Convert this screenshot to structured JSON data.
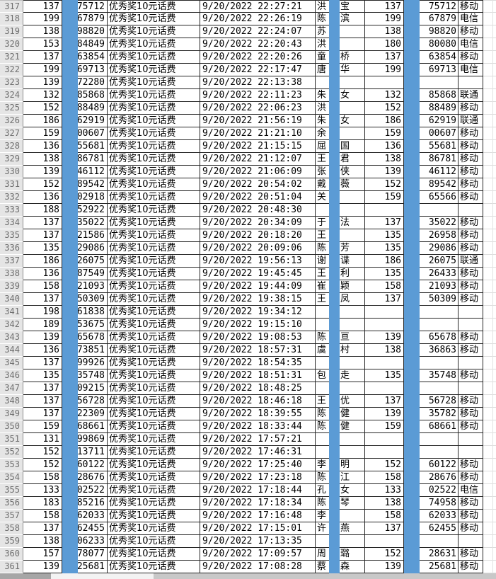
{
  "colors": {
    "mask_blue": "#5b9bd5"
  },
  "rows": [
    {
      "num": "317",
      "p1": "137",
      "s1": "75712",
      "prize": "优秀奖10元话费",
      "datetime": "9/20/2022 22:27:21",
      "n1": "洪",
      "n2": "宝",
      "p2": "137",
      "s2": "75712",
      "carrier": "移动"
    },
    {
      "num": "318",
      "p1": "199",
      "s1": "67879",
      "prize": "优秀奖10元话费",
      "datetime": "9/20/2022 22:26:19",
      "n1": "陈",
      "n2": "滨",
      "p2": "199",
      "s2": "67879",
      "carrier": "电信"
    },
    {
      "num": "319",
      "p1": "138",
      "s1": "98820",
      "prize": "优秀奖10元话费",
      "datetime": "9/20/2022 22:24:07",
      "n1": "苏",
      "n2": "",
      "p2": "138",
      "s2": "98820",
      "carrier": "移动"
    },
    {
      "num": "320",
      "p1": "153",
      "s1": "84849",
      "prize": "优秀奖10元话费",
      "datetime": "9/20/2022 22:20:43",
      "n1": "洪",
      "n2": "",
      "p2": "180",
      "s2": "80080",
      "carrier": "电信"
    },
    {
      "num": "321",
      "p1": "137",
      "s1": "63854",
      "prize": "优秀奖10元话费",
      "datetime": "9/20/2022 22:20:26",
      "n1": "童",
      "n2": "桥",
      "p2": "137",
      "s2": "63854",
      "carrier": "移动"
    },
    {
      "num": "322",
      "p1": "199",
      "s1": "69713",
      "prize": "优秀奖10元话费",
      "datetime": "9/20/2022 22:17:47",
      "n1": "唐",
      "n2": "华",
      "p2": "199",
      "s2": "69713",
      "carrier": "电信"
    },
    {
      "num": "323",
      "p1": "139",
      "s1": "72280",
      "prize": "优秀奖10元话费",
      "datetime": "9/20/2022 22:13:38",
      "n1": "",
      "n2": "",
      "p2": "",
      "s2": "",
      "carrier": ""
    },
    {
      "num": "324",
      "p1": "132",
      "s1": "85868",
      "prize": "优秀奖10元话费",
      "datetime": "9/20/2022 22:11:23",
      "n1": "朱",
      "n2": "女",
      "p2": "132",
      "s2": "85868",
      "carrier": "联通"
    },
    {
      "num": "325",
      "p1": "152",
      "s1": "88489",
      "prize": "优秀奖10元话费",
      "datetime": "9/20/2022 22:06:23",
      "n1": "洪",
      "n2": "",
      "p2": "152",
      "s2": "88489",
      "carrier": "移动"
    },
    {
      "num": "326",
      "p1": "186",
      "s1": "62919",
      "prize": "优秀奖10元话费",
      "datetime": "9/20/2022 21:56:19",
      "n1": "朱",
      "n2": "女",
      "p2": "186",
      "s2": "62919",
      "carrier": "联通"
    },
    {
      "num": "327",
      "p1": "159",
      "s1": "00607",
      "prize": "优秀奖10元话费",
      "datetime": "9/20/2022 21:21:10",
      "n1": "余",
      "n2": "",
      "p2": "159",
      "s2": "00607",
      "carrier": "移动"
    },
    {
      "num": "328",
      "p1": "136",
      "s1": "55681",
      "prize": "优秀奖10元话费",
      "datetime": "9/20/2022 21:15:15",
      "n1": "屈",
      "n2": "国",
      "p2": "136",
      "s2": "55681",
      "carrier": "移动"
    },
    {
      "num": "329",
      "p1": "138",
      "s1": "86781",
      "prize": "优秀奖10元话费",
      "datetime": "9/20/2022 21:12:07",
      "n1": "王",
      "n2": "君",
      "p2": "138",
      "s2": "86781",
      "carrier": "移动"
    },
    {
      "num": "330",
      "p1": "139",
      "s1": "46112",
      "prize": "优秀奖10元话费",
      "datetime": "9/20/2022 21:06:09",
      "n1": "张",
      "n2": "侠",
      "p2": "139",
      "s2": "46112",
      "carrier": "移动"
    },
    {
      "num": "331",
      "p1": "152",
      "s1": "89542",
      "prize": "优秀奖10元话费",
      "datetime": "9/20/2022 20:54:02",
      "n1": "戴",
      "n2": "薇",
      "p2": "152",
      "s2": "89542",
      "carrier": "移动"
    },
    {
      "num": "332",
      "p1": "136",
      "s1": "02918",
      "prize": "优秀奖10元话费",
      "datetime": "9/20/2022 20:51:04",
      "n1": "关",
      "n2": "",
      "p2": "159",
      "s2": "65566",
      "carrier": "移动"
    },
    {
      "num": "333",
      "p1": "188",
      "s1": "52922",
      "prize": "优秀奖10元话费",
      "datetime": "9/20/2022 20:48:30",
      "n1": "",
      "n2": "",
      "p2": "",
      "s2": "",
      "carrier": ""
    },
    {
      "num": "334",
      "p1": "137",
      "s1": "35022",
      "prize": "优秀奖10元话费",
      "datetime": "9/20/2022 20:34:09",
      "n1": "于",
      "n2": "法",
      "p2": "137",
      "s2": "35022",
      "carrier": "移动"
    },
    {
      "num": "335",
      "p1": "137",
      "s1": "21586",
      "prize": "优秀奖10元话费",
      "datetime": "9/20/2022 20:18:20",
      "n1": "王",
      "n2": "",
      "p2": "135",
      "s2": "26958",
      "carrier": "移动"
    },
    {
      "num": "336",
      "p1": "135",
      "s1": "29086",
      "prize": "优秀奖10元话费",
      "datetime": "9/20/2022 20:09:06",
      "n1": "陈",
      "n2": "芳",
      "p2": "135",
      "s2": "29086",
      "carrier": "移动"
    },
    {
      "num": "337",
      "p1": "186",
      "s1": "26075",
      "prize": "优秀奖10元话费",
      "datetime": "9/20/2022 19:56:13",
      "n1": "谢",
      "n2": "谍",
      "p2": "186",
      "s2": "26075",
      "carrier": "联通"
    },
    {
      "num": "338",
      "p1": "136",
      "s1": "87549",
      "prize": "优秀奖10元话费",
      "datetime": "9/20/2022 19:45:45",
      "n1": "王",
      "n2": "利",
      "p2": "135",
      "s2": "26433",
      "carrier": "移动"
    },
    {
      "num": "339",
      "p1": "158",
      "s1": "21093",
      "prize": "优秀奖10元话费",
      "datetime": "9/20/2022 19:44:09",
      "n1": "崔",
      "n2": "颖",
      "p2": "158",
      "s2": "21093",
      "carrier": "移动"
    },
    {
      "num": "340",
      "p1": "137",
      "s1": "50309",
      "prize": "优秀奖10元话费",
      "datetime": "9/20/2022 19:38:15",
      "n1": "王",
      "n2": "凤",
      "p2": "137",
      "s2": "50309",
      "carrier": "移动"
    },
    {
      "num": "341",
      "p1": "198",
      "s1": "61838",
      "prize": "优秀奖10元话费",
      "datetime": "9/20/2022 19:34:12",
      "n1": "",
      "n2": "",
      "p2": "",
      "s2": "",
      "carrier": ""
    },
    {
      "num": "342",
      "p1": "189",
      "s1": "53675",
      "prize": "优秀奖10元话费",
      "datetime": "9/20/2022 19:15:10",
      "n1": "",
      "n2": "",
      "p2": "",
      "s2": "",
      "carrier": ""
    },
    {
      "num": "343",
      "p1": "139",
      "s1": "65678",
      "prize": "优秀奖10元话费",
      "datetime": "9/20/2022 19:08:53",
      "n1": "陈",
      "n2": "亘",
      "p2": "139",
      "s2": "65678",
      "carrier": "移动"
    },
    {
      "num": "344",
      "p1": "136",
      "s1": "73851",
      "prize": "优秀奖10元话费",
      "datetime": "9/20/2022 18:57:31",
      "n1": "虞",
      "n2": "村",
      "p2": "138",
      "s2": "36863",
      "carrier": "移动"
    },
    {
      "num": "345",
      "p1": "137",
      "s1": "99926",
      "prize": "优秀奖10元话费",
      "datetime": "9/20/2022 18:54:35",
      "n1": "",
      "n2": "",
      "p2": "",
      "s2": "",
      "carrier": ""
    },
    {
      "num": "346",
      "p1": "135",
      "s1": "35748",
      "prize": "优秀奖10元话费",
      "datetime": "9/20/2022 18:51:31",
      "n1": "包",
      "n2": "走",
      "p2": "135",
      "s2": "35748",
      "carrier": "移动"
    },
    {
      "num": "347",
      "p1": "137",
      "s1": "09215",
      "prize": "优秀奖10元话费",
      "datetime": "9/20/2022 18:48:25",
      "n1": "",
      "n2": "",
      "p2": "",
      "s2": "",
      "carrier": ""
    },
    {
      "num": "348",
      "p1": "137",
      "s1": "56728",
      "prize": "优秀奖10元话费",
      "datetime": "9/20/2022 18:46:18",
      "n1": "王",
      "n2": "优",
      "p2": "137",
      "s2": "56728",
      "carrier": "移动"
    },
    {
      "num": "349",
      "p1": "137",
      "s1": "22309",
      "prize": "优秀奖10元话费",
      "datetime": "9/20/2022 18:39:55",
      "n1": "陈",
      "n2": "健",
      "p2": "139",
      "s2": "35782",
      "carrier": "移动"
    },
    {
      "num": "350",
      "p1": "159",
      "s1": "68661",
      "prize": "优秀奖10元话费",
      "datetime": "9/20/2022 18:33:44",
      "n1": "陈",
      "n2": "健",
      "p2": "159",
      "s2": "68661",
      "carrier": "移动"
    },
    {
      "num": "351",
      "p1": "131",
      "s1": "99869",
      "prize": "优秀奖10元话费",
      "datetime": "9/20/2022 17:57:21",
      "n1": "",
      "n2": "",
      "p2": "",
      "s2": "",
      "carrier": ""
    },
    {
      "num": "352",
      "p1": "152",
      "s1": "13711",
      "prize": "优秀奖10元话费",
      "datetime": "9/20/2022 17:46:31",
      "n1": "",
      "n2": "",
      "p2": "",
      "s2": "",
      "carrier": ""
    },
    {
      "num": "353",
      "p1": "152",
      "s1": "60122",
      "prize": "优秀奖10元话费",
      "datetime": "9/20/2022 17:25:40",
      "n1": "李",
      "n2": "明",
      "p2": "152",
      "s2": "60122",
      "carrier": "移动"
    },
    {
      "num": "354",
      "p1": "158",
      "s1": "28676",
      "prize": "优秀奖10元话费",
      "datetime": "9/20/2022 17:23:18",
      "n1": "陈",
      "n2": "江",
      "p2": "158",
      "s2": "28676",
      "carrier": "移动"
    },
    {
      "num": "355",
      "p1": "133",
      "s1": "02522",
      "prize": "优秀奖10元话费",
      "datetime": "9/20/2022 17:18:44",
      "n1": "孔",
      "n2": "女",
      "p2": "133",
      "s2": "02522",
      "carrier": "电信"
    },
    {
      "num": "356",
      "p1": "183",
      "s1": "85216",
      "prize": "优秀奖10元话费",
      "datetime": "9/20/2022 17:18:34",
      "n1": "陈",
      "n2": "琴",
      "p2": "138",
      "s2": "74958",
      "carrier": "移动"
    },
    {
      "num": "357",
      "p1": "158",
      "s1": "62033",
      "prize": "优秀奖10元话费",
      "datetime": "9/20/2022 17:16:48",
      "n1": "李",
      "n2": "",
      "p2": "158",
      "s2": "62033",
      "carrier": "移动"
    },
    {
      "num": "358",
      "p1": "137",
      "s1": "62455",
      "prize": "优秀奖10元话费",
      "datetime": "9/20/2022 17:15:01",
      "n1": "许",
      "n2": "燕",
      "p2": "137",
      "s2": "62455",
      "carrier": "移动"
    },
    {
      "num": "359",
      "p1": "138",
      "s1": "06233",
      "prize": "优秀奖10元话费",
      "datetime": "9/20/2022 17:13:35",
      "n1": "",
      "n2": "",
      "p2": "",
      "s2": "",
      "carrier": ""
    },
    {
      "num": "360",
      "p1": "157",
      "s1": "78077",
      "prize": "优秀奖10元话费",
      "datetime": "9/20/2022 17:09:57",
      "n1": "周",
      "n2": "璐",
      "p2": "152",
      "s2": "28631",
      "carrier": "移动"
    },
    {
      "num": "361",
      "p1": "139",
      "s1": "25681",
      "prize": "优秀奖10元话费",
      "datetime": "9/20/2022 17:08:28",
      "n1": "蔡",
      "n2": "森",
      "p2": "139",
      "s2": "25681",
      "carrier": "移动"
    }
  ]
}
